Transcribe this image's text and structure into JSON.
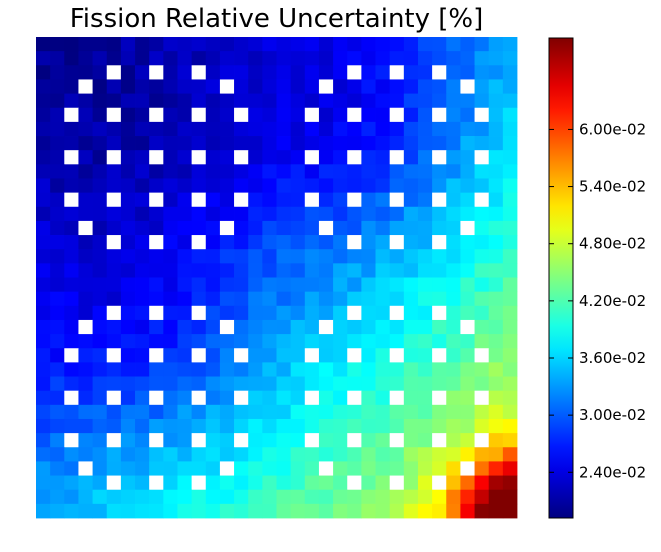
{
  "chart_data": {
    "type": "heatmap",
    "title": "Fission Relative Uncertainty [%]",
    "xlabel": "",
    "ylabel": "",
    "grid": false,
    "rows": 34,
    "cols": 34,
    "colormap": "jet",
    "colorbar": {
      "min": 0.0192,
      "max": 0.0696,
      "ticks": [
        0.024,
        0.03,
        0.036,
        0.042,
        0.048,
        0.054,
        0.06
      ],
      "tick_labels": [
        "2.40e-02",
        "3.00e-02",
        "3.60e-02",
        "4.20e-02",
        "4.80e-02",
        "5.40e-02",
        "6.00e-02"
      ]
    },
    "field_model": {
      "description_units": "relative uncertainty (fraction)",
      "quadrant_base": {
        "upper_left": 0.0205,
        "upper_right": 0.03,
        "lower_left": 0.03,
        "lower_right": 0.045
      },
      "corner_peak_lower_right": 0.069
    },
    "assemblies": [
      {
        "name": "upper-left",
        "row0": 0,
        "col0": 0
      },
      {
        "name": "upper-right",
        "row0": 0,
        "col0": 17
      },
      {
        "name": "lower-left",
        "row0": 17,
        "col0": 0
      },
      {
        "name": "lower-right",
        "row0": 17,
        "col0": 17
      }
    ],
    "guide_tube_positions": [
      [
        2,
        5
      ],
      [
        2,
        8
      ],
      [
        2,
        11
      ],
      [
        3,
        3
      ],
      [
        3,
        13
      ],
      [
        5,
        2
      ],
      [
        5,
        5
      ],
      [
        5,
        8
      ],
      [
        5,
        11
      ],
      [
        5,
        14
      ],
      [
        8,
        2
      ],
      [
        8,
        5
      ],
      [
        8,
        8
      ],
      [
        8,
        11
      ],
      [
        8,
        14
      ],
      [
        11,
        2
      ],
      [
        11,
        5
      ],
      [
        11,
        8
      ],
      [
        11,
        11
      ],
      [
        11,
        14
      ],
      [
        13,
        3
      ],
      [
        13,
        13
      ],
      [
        14,
        5
      ],
      [
        14,
        8
      ],
      [
        14,
        11
      ]
    ]
  }
}
